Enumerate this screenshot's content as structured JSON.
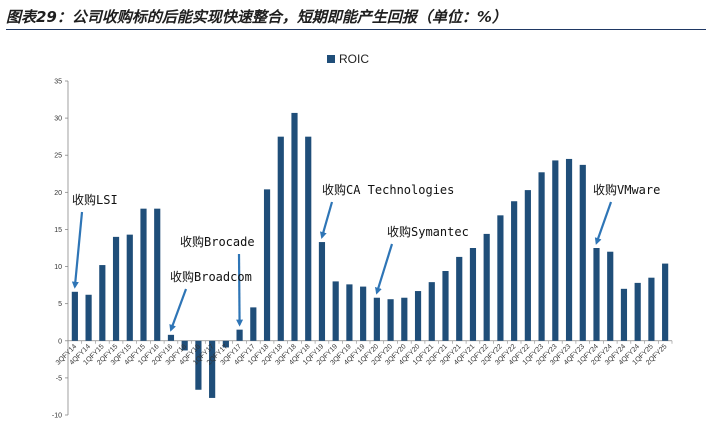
{
  "figure_title": "图表29：公司收购标的后能实现快速整合，短期即能产生回报（单位：%）",
  "chart_data": {
    "type": "bar",
    "title": "",
    "xlabel": "",
    "ylabel": "",
    "ylim": [
      -10,
      35
    ],
    "yticks": [
      35,
      30,
      25,
      20,
      15,
      10,
      5,
      0,
      -5,
      -10
    ],
    "grid": false,
    "legend_position": "top-center",
    "bar_color": "#1f4e79",
    "series": [
      {
        "name": "ROIC",
        "values": [
          6.6,
          6.2,
          10.2,
          14.0,
          14.3,
          17.8,
          17.8,
          0.8,
          -1.3,
          -6.6,
          -7.7,
          -0.9,
          1.5,
          4.5,
          20.4,
          27.5,
          30.7,
          27.5,
          13.3,
          8.0,
          7.6,
          7.3,
          5.8,
          5.6,
          5.8,
          6.7,
          7.9,
          9.4,
          11.3,
          12.5,
          14.4,
          16.9,
          18.8,
          20.3,
          22.7,
          24.3,
          24.5,
          23.7,
          12.5,
          12.0,
          7.0,
          7.8,
          8.5,
          10.4
        ]
      }
    ],
    "categories": [
      "3QFY14",
      "4QFY14",
      "1QFY15",
      "2QFY15",
      "3QFY15",
      "4QFY15",
      "1QFY16",
      "2QFY16",
      "3QFY16",
      "4QFY16",
      "1QFY17",
      "2QFY17",
      "3QFY17",
      "4QFY17",
      "1QFY18",
      "2QFY18",
      "3QFY18",
      "4QFY18",
      "1QFY19",
      "2QFY19",
      "3QFY19",
      "4QFY19",
      "1QFY20",
      "2QFY20",
      "3QFY20",
      "4QFY20",
      "1QFY21",
      "2QFY21",
      "3QFY21",
      "4QFY21",
      "1QFY22",
      "2QFY22",
      "3QFY22",
      "4QFY22",
      "1QFY23",
      "2QFY23",
      "3QFY23",
      "4QFY23",
      "1QFY24",
      "2QFY24",
      "3QFY24",
      "4QFY24",
      "1QFY25",
      "2QFY25"
    ],
    "annotations": [
      {
        "text": "收购LSI",
        "target_index": 0
      },
      {
        "text": "收购Brocade",
        "target_index": 12
      },
      {
        "text": "收购Broadcom",
        "target_index": 7
      },
      {
        "text": "收购CA Technologies",
        "target_index": 18
      },
      {
        "text": "收购Symantec",
        "target_index": 22
      },
      {
        "text": "收购VMware",
        "target_index": 38
      }
    ]
  }
}
